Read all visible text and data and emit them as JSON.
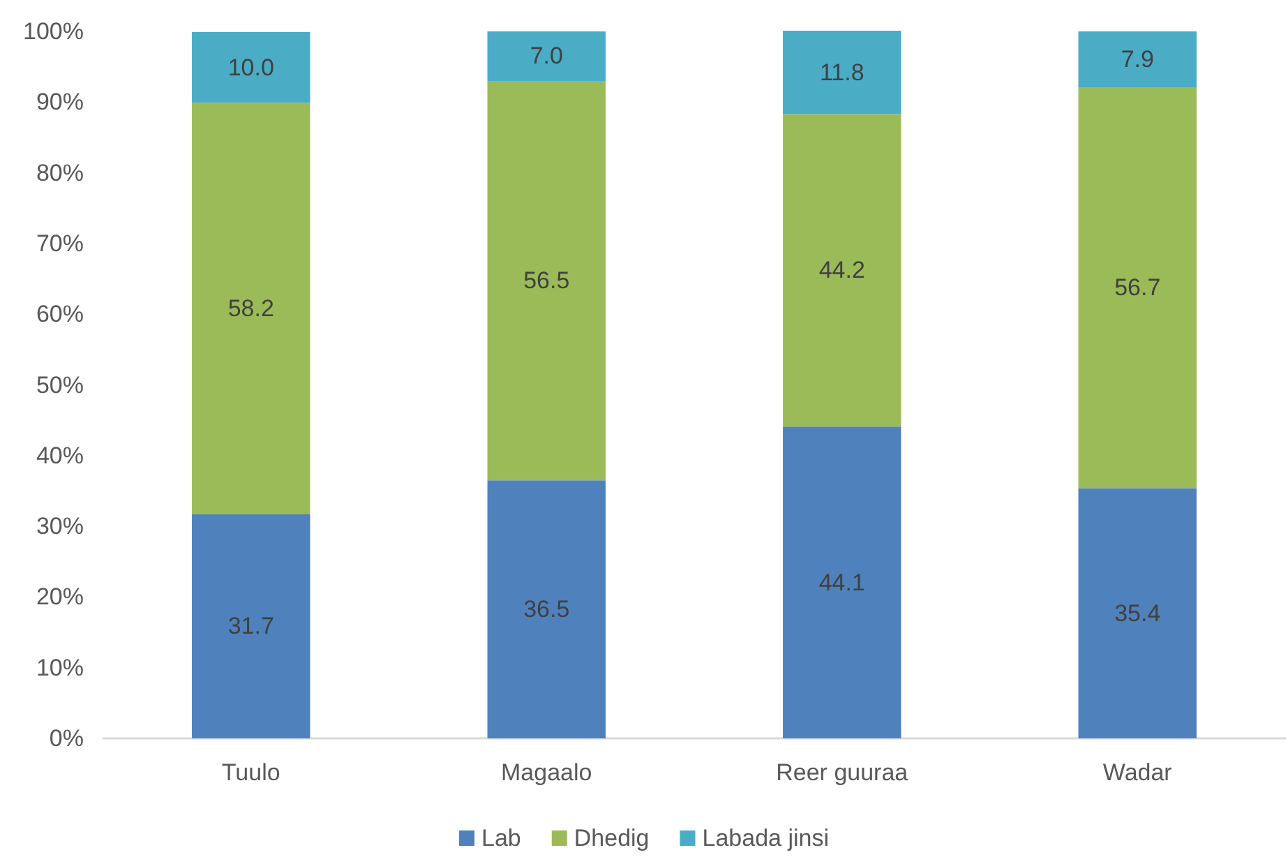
{
  "chart_data": {
    "type": "bar",
    "stacked": true,
    "categories": [
      "Tuulo",
      "Magaalo",
      "Reer guuraa",
      "Wadar"
    ],
    "series": [
      {
        "name": "Lab",
        "color": "#4f81bd",
        "values": [
          31.7,
          36.5,
          44.1,
          35.4
        ],
        "value_labels": [
          "31.7",
          "36.5",
          "44.1",
          "35.4"
        ]
      },
      {
        "name": "Dhedig",
        "color": "#9bbb59",
        "values": [
          58.2,
          56.5,
          44.2,
          56.7
        ],
        "value_labels": [
          "58.2",
          "56.5",
          "44.2",
          "56.7"
        ]
      },
      {
        "name": "Labada jinsi",
        "color": "#4bacc6",
        "values": [
          10.0,
          7.0,
          11.8,
          7.9
        ],
        "value_labels": [
          "10.0",
          "7.0",
          "11.8",
          "7.9"
        ]
      }
    ],
    "ylim": [
      0,
      100.1
    ],
    "yticks": [
      {
        "value": 0,
        "label": "0%"
      },
      {
        "value": 10,
        "label": "10%"
      },
      {
        "value": 20,
        "label": "20%"
      },
      {
        "value": 30,
        "label": "30%"
      },
      {
        "value": 40,
        "label": "40%"
      },
      {
        "value": 50,
        "label": "50%"
      },
      {
        "value": 60,
        "label": "60%"
      },
      {
        "value": 70,
        "label": "70%"
      },
      {
        "value": 80,
        "label": "80%"
      },
      {
        "value": 90,
        "label": "90%"
      },
      {
        "value": 100,
        "label": "100%"
      }
    ],
    "legend": "bottom"
  }
}
